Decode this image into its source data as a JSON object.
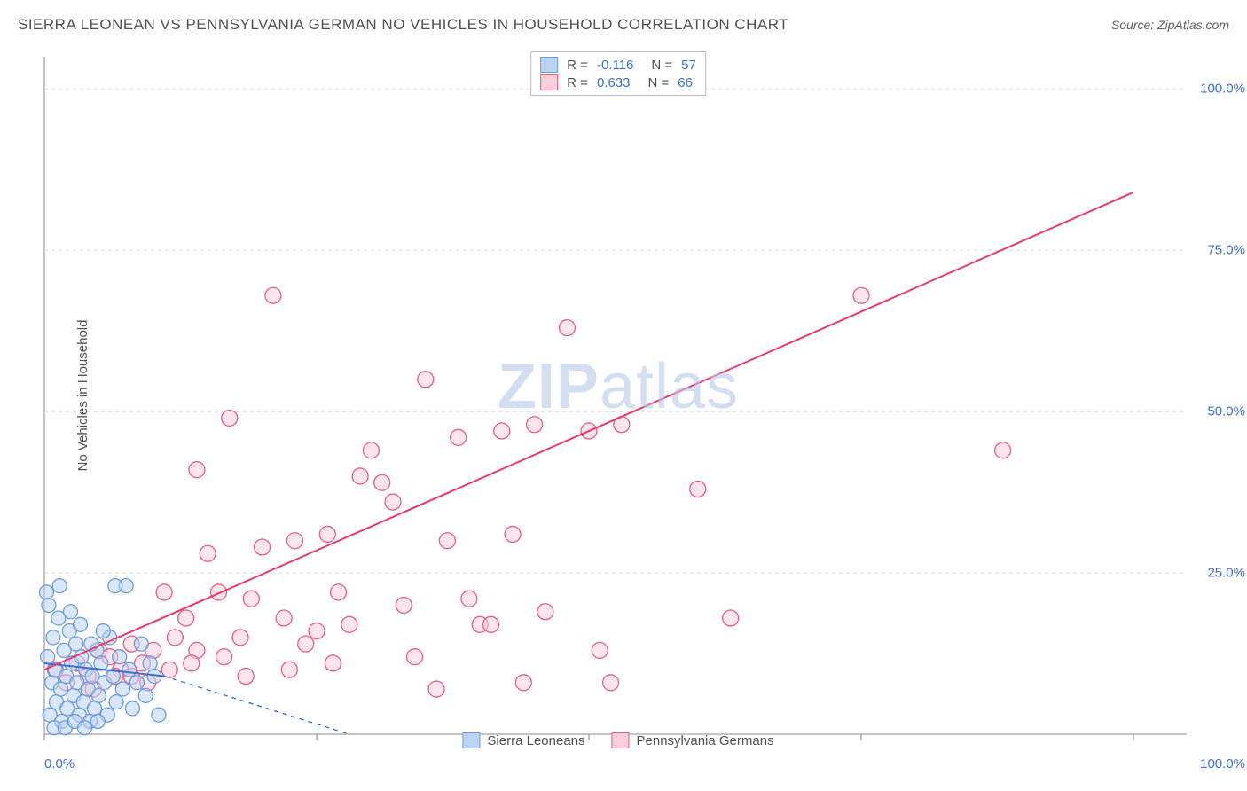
{
  "title": "SIERRA LEONEAN VS PENNSYLVANIA GERMAN NO VEHICLES IN HOUSEHOLD CORRELATION CHART",
  "source_label": "Source:",
  "source_value": "ZipAtlas.com",
  "ylabel": "No Vehicles in Household",
  "watermark_bold": "ZIP",
  "watermark_rest": "atlas",
  "chart": {
    "type": "scatter",
    "xlim": [
      0,
      100
    ],
    "ylim": [
      0,
      105
    ],
    "xticks": [
      0,
      25,
      50,
      75,
      100
    ],
    "xtick_labels": [
      "0.0%",
      "",
      "",
      "",
      "100.0%"
    ],
    "yticks": [
      25,
      50,
      75,
      100
    ],
    "ytick_labels": [
      "25.0%",
      "50.0%",
      "75.0%",
      "100.0%"
    ],
    "grid_color": "#d8d8d8",
    "grid_dash": "4,4",
    "axis_color": "#888888",
    "background_color": "#ffffff",
    "tick_label_color": "#3b6fd4",
    "tick_label_fontsize": 15,
    "series": [
      {
        "name": "Sierra Leoneans",
        "color_fill": "#bcd4f2",
        "color_stroke": "#6a9de0",
        "fill_opacity": 0.55,
        "marker_radius": 8,
        "R": "-0.116",
        "N": "57",
        "trend": {
          "x1": 0,
          "y1": 11,
          "x2": 11,
          "y2": 9,
          "color": "#3b6fd4",
          "width": 2,
          "dash": "none",
          "ext_x2": 28,
          "ext_y2": 0,
          "ext_dash": "5,5"
        },
        "points": [
          [
            0.2,
            22
          ],
          [
            0.3,
            12
          ],
          [
            0.5,
            3
          ],
          [
            0.7,
            8
          ],
          [
            0.8,
            15
          ],
          [
            1.0,
            10
          ],
          [
            1.1,
            5
          ],
          [
            1.3,
            18
          ],
          [
            1.5,
            7
          ],
          [
            1.6,
            2
          ],
          [
            1.8,
            13
          ],
          [
            2.0,
            9
          ],
          [
            2.1,
            4
          ],
          [
            2.3,
            16
          ],
          [
            2.5,
            11
          ],
          [
            2.7,
            6
          ],
          [
            2.9,
            14
          ],
          [
            3.0,
            8
          ],
          [
            3.2,
            3
          ],
          [
            3.4,
            12
          ],
          [
            3.6,
            5
          ],
          [
            3.8,
            10
          ],
          [
            4.0,
            7
          ],
          [
            4.2,
            2
          ],
          [
            4.4,
            9
          ],
          [
            4.6,
            4
          ],
          [
            4.8,
            13
          ],
          [
            5.0,
            6
          ],
          [
            5.2,
            11
          ],
          [
            5.5,
            8
          ],
          [
            5.8,
            3
          ],
          [
            6.0,
            15
          ],
          [
            6.3,
            9
          ],
          [
            6.6,
            5
          ],
          [
            6.9,
            12
          ],
          [
            7.2,
            7
          ],
          [
            7.5,
            23
          ],
          [
            7.8,
            10
          ],
          [
            8.1,
            4
          ],
          [
            8.5,
            8
          ],
          [
            8.9,
            14
          ],
          [
            9.3,
            6
          ],
          [
            9.7,
            11
          ],
          [
            10.1,
            9
          ],
          [
            10.5,
            3
          ],
          [
            0.4,
            20
          ],
          [
            0.9,
            1
          ],
          [
            1.4,
            23
          ],
          [
            1.9,
            1
          ],
          [
            2.4,
            19
          ],
          [
            2.8,
            2
          ],
          [
            3.3,
            17
          ],
          [
            3.7,
            1
          ],
          [
            4.3,
            14
          ],
          [
            4.9,
            2
          ],
          [
            5.4,
            16
          ],
          [
            6.5,
            23
          ]
        ]
      },
      {
        "name": "Pennsylvania Germans",
        "color_fill": "#f9d0da",
        "color_stroke": "#ea5d85",
        "fill_opacity": 0.55,
        "marker_radius": 9,
        "R": "0.633",
        "N": "66",
        "trend": {
          "x1": 0,
          "y1": 10,
          "x2": 100,
          "y2": 84,
          "color": "#ea3a6b",
          "width": 2,
          "dash": "none"
        },
        "points": [
          [
            1,
            10
          ],
          [
            2,
            8
          ],
          [
            3,
            11
          ],
          [
            4,
            9
          ],
          [
            5,
            13
          ],
          [
            6,
            12
          ],
          [
            7,
            10
          ],
          [
            8,
            14
          ],
          [
            9,
            11
          ],
          [
            10,
            13
          ],
          [
            11,
            22
          ],
          [
            12,
            15
          ],
          [
            13,
            18
          ],
          [
            14,
            13
          ],
          [
            15,
            28
          ],
          [
            16,
            22
          ],
          [
            17,
            49
          ],
          [
            18,
            15
          ],
          [
            19,
            21
          ],
          [
            20,
            29
          ],
          [
            21,
            68
          ],
          [
            22,
            18
          ],
          [
            23,
            30
          ],
          [
            24,
            14
          ],
          [
            25,
            16
          ],
          [
            26,
            31
          ],
          [
            27,
            22
          ],
          [
            28,
            17
          ],
          [
            29,
            40
          ],
          [
            30,
            44
          ],
          [
            31,
            39
          ],
          [
            32,
            36
          ],
          [
            33,
            20
          ],
          [
            34,
            12
          ],
          [
            35,
            55
          ],
          [
            36,
            7
          ],
          [
            37,
            30
          ],
          [
            38,
            46
          ],
          [
            39,
            21
          ],
          [
            40,
            17
          ],
          [
            41,
            17
          ],
          [
            42,
            47
          ],
          [
            43,
            31
          ],
          [
            44,
            8
          ],
          [
            45,
            48
          ],
          [
            46,
            19
          ],
          [
            48,
            63
          ],
          [
            50,
            47
          ],
          [
            51,
            13
          ],
          [
            52,
            8
          ],
          [
            53,
            48
          ],
          [
            60,
            38
          ],
          [
            63,
            18
          ],
          [
            75,
            68
          ],
          [
            88,
            44
          ],
          [
            14,
            41
          ],
          [
            8,
            9
          ],
          [
            9.5,
            8
          ],
          [
            11.5,
            10
          ],
          [
            13.5,
            11
          ],
          [
            16.5,
            12
          ],
          [
            18.5,
            9
          ],
          [
            22.5,
            10
          ],
          [
            26.5,
            11
          ],
          [
            6.5,
            9
          ],
          [
            4.5,
            7
          ]
        ]
      }
    ],
    "legend_bottom": [
      "Sierra Leoneans",
      "Pennsylvania Germans"
    ]
  }
}
